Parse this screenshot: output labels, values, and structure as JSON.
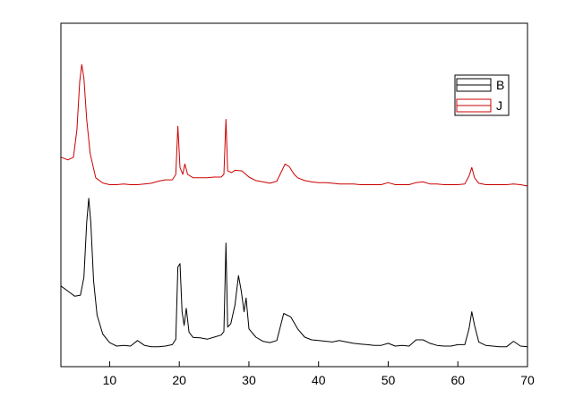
{
  "chart_data": {
    "type": "line",
    "title": "",
    "xlabel": "",
    "ylabel": "",
    "xlim": [
      3,
      70
    ],
    "ylim": [
      0,
      100
    ],
    "x_ticks": [
      10,
      20,
      30,
      40,
      50,
      60,
      70
    ],
    "y_ticks": [],
    "grid": false,
    "legend_position": "top-right",
    "legend": [
      {
        "name": "B",
        "color": "#000000"
      },
      {
        "name": "J",
        "color": "#cc0000"
      }
    ],
    "series": [
      {
        "name": "B",
        "color": "#000000",
        "points": [
          [
            3.0,
            23.5
          ],
          [
            4.0,
            22.0
          ],
          [
            5.0,
            20.5
          ],
          [
            5.8,
            20.8
          ],
          [
            6.3,
            26
          ],
          [
            6.7,
            42
          ],
          [
            7.0,
            49
          ],
          [
            7.3,
            42
          ],
          [
            7.7,
            25
          ],
          [
            8.2,
            15
          ],
          [
            9.0,
            9.5
          ],
          [
            10.0,
            7.0
          ],
          [
            11.0,
            6.0
          ],
          [
            12.0,
            6.2
          ],
          [
            13.0,
            6.0
          ],
          [
            14.0,
            7.6
          ],
          [
            15.0,
            6.2
          ],
          [
            16.0,
            5.8
          ],
          [
            17.0,
            5.8
          ],
          [
            18.0,
            6.0
          ],
          [
            19.0,
            6.4
          ],
          [
            19.5,
            8
          ],
          [
            19.8,
            29
          ],
          [
            20.1,
            30
          ],
          [
            20.4,
            16
          ],
          [
            20.7,
            12
          ],
          [
            21.0,
            17
          ],
          [
            21.4,
            10
          ],
          [
            22.0,
            8.5
          ],
          [
            23.0,
            8.4
          ],
          [
            24.0,
            8.0
          ],
          [
            25.0,
            8.6
          ],
          [
            26.0,
            9.2
          ],
          [
            26.4,
            10.2
          ],
          [
            26.7,
            36
          ],
          [
            26.95,
            11.5
          ],
          [
            27.4,
            12.5
          ],
          [
            28.0,
            18
          ],
          [
            28.5,
            26.5
          ],
          [
            28.9,
            22
          ],
          [
            29.3,
            16
          ],
          [
            29.6,
            20
          ],
          [
            30.0,
            11
          ],
          [
            31.0,
            8.6
          ],
          [
            32.0,
            7.4
          ],
          [
            33.0,
            7.0
          ],
          [
            34.0,
            7.6
          ],
          [
            35.0,
            15.5
          ],
          [
            36.0,
            14.5
          ],
          [
            37.0,
            11
          ],
          [
            38.0,
            8.6
          ],
          [
            39.0,
            7.8
          ],
          [
            40.0,
            7.6
          ],
          [
            41.0,
            7.4
          ],
          [
            42.0,
            7.2
          ],
          [
            43.0,
            7.6
          ],
          [
            44.0,
            7.2
          ],
          [
            45.0,
            6.8
          ],
          [
            46.0,
            6.6
          ],
          [
            47.0,
            6.4
          ],
          [
            48.0,
            6.2
          ],
          [
            49.0,
            6.2
          ],
          [
            50.0,
            6.8
          ],
          [
            51.0,
            6.0
          ],
          [
            52.0,
            6.2
          ],
          [
            53.0,
            6.0
          ],
          [
            54.0,
            7.8
          ],
          [
            55.0,
            7.8
          ],
          [
            56.0,
            6.8
          ],
          [
            57.0,
            6.2
          ],
          [
            58.0,
            6.0
          ],
          [
            59.0,
            6.0
          ],
          [
            60.0,
            6.4
          ],
          [
            61.0,
            6.4
          ],
          [
            61.6,
            11
          ],
          [
            62.0,
            16
          ],
          [
            62.4,
            12
          ],
          [
            63.0,
            7.2
          ],
          [
            64.0,
            6.2
          ],
          [
            65.0,
            6.0
          ],
          [
            66.0,
            5.8
          ],
          [
            67.0,
            5.8
          ],
          [
            68.0,
            7.4
          ],
          [
            69.0,
            6.0
          ],
          [
            70.0,
            5.8
          ]
        ]
      },
      {
        "name": "J",
        "color": "#cc0000",
        "points": [
          [
            3.0,
            61.0
          ],
          [
            4.0,
            60.2
          ],
          [
            4.8,
            61.0
          ],
          [
            5.3,
            69
          ],
          [
            5.7,
            83
          ],
          [
            6.0,
            88
          ],
          [
            6.3,
            84
          ],
          [
            6.7,
            72
          ],
          [
            7.2,
            62
          ],
          [
            8.0,
            55
          ],
          [
            9.0,
            53.5
          ],
          [
            10.0,
            53.0
          ],
          [
            11.0,
            53.0
          ],
          [
            12.0,
            53.2
          ],
          [
            13.0,
            53.0
          ],
          [
            14.0,
            53.0
          ],
          [
            15.0,
            53.2
          ],
          [
            16.0,
            53.4
          ],
          [
            17.0,
            54.0
          ],
          [
            18.0,
            54.4
          ],
          [
            19.0,
            54.4
          ],
          [
            19.5,
            56
          ],
          [
            19.8,
            70
          ],
          [
            20.1,
            58
          ],
          [
            20.5,
            56
          ],
          [
            20.8,
            59
          ],
          [
            21.2,
            56
          ],
          [
            22.0,
            55
          ],
          [
            23.0,
            55
          ],
          [
            24.0,
            55
          ],
          [
            25.0,
            55.2
          ],
          [
            26.0,
            55.2
          ],
          [
            26.4,
            56
          ],
          [
            26.7,
            72
          ],
          [
            26.95,
            57
          ],
          [
            27.5,
            56.5
          ],
          [
            28.0,
            57.2
          ],
          [
            29.0,
            57
          ],
          [
            30.0,
            55.2
          ],
          [
            31.0,
            54.2
          ],
          [
            32.0,
            53.8
          ],
          [
            33.0,
            53.4
          ],
          [
            34.0,
            54.0
          ],
          [
            34.6,
            56.5
          ],
          [
            35.2,
            59
          ],
          [
            35.8,
            58.2
          ],
          [
            36.5,
            56
          ],
          [
            37.0,
            55
          ],
          [
            38.0,
            54.2
          ],
          [
            39.0,
            53.8
          ],
          [
            40.0,
            53.6
          ],
          [
            41.0,
            53.6
          ],
          [
            42.0,
            53.4
          ],
          [
            43.0,
            53.2
          ],
          [
            44.0,
            53.2
          ],
          [
            45.0,
            53.2
          ],
          [
            46.0,
            53.0
          ],
          [
            47.0,
            53.0
          ],
          [
            48.0,
            53.0
          ],
          [
            49.0,
            53.0
          ],
          [
            50.0,
            53.6
          ],
          [
            51.0,
            53.0
          ],
          [
            52.0,
            53.0
          ],
          [
            53.0,
            53.0
          ],
          [
            54.0,
            53.6
          ],
          [
            55.0,
            53.8
          ],
          [
            56.0,
            53.2
          ],
          [
            57.0,
            53.2
          ],
          [
            58.0,
            53.0
          ],
          [
            59.0,
            53.0
          ],
          [
            60.0,
            53.0
          ],
          [
            61.0,
            53.2
          ],
          [
            61.6,
            55.5
          ],
          [
            62.0,
            58
          ],
          [
            62.4,
            55
          ],
          [
            63.0,
            53.4
          ],
          [
            64.0,
            53.0
          ],
          [
            65.0,
            53.0
          ],
          [
            66.0,
            53.0
          ],
          [
            67.0,
            53.0
          ],
          [
            68.0,
            53.2
          ],
          [
            69.0,
            53.0
          ],
          [
            70.0,
            52.6
          ]
        ]
      }
    ]
  }
}
